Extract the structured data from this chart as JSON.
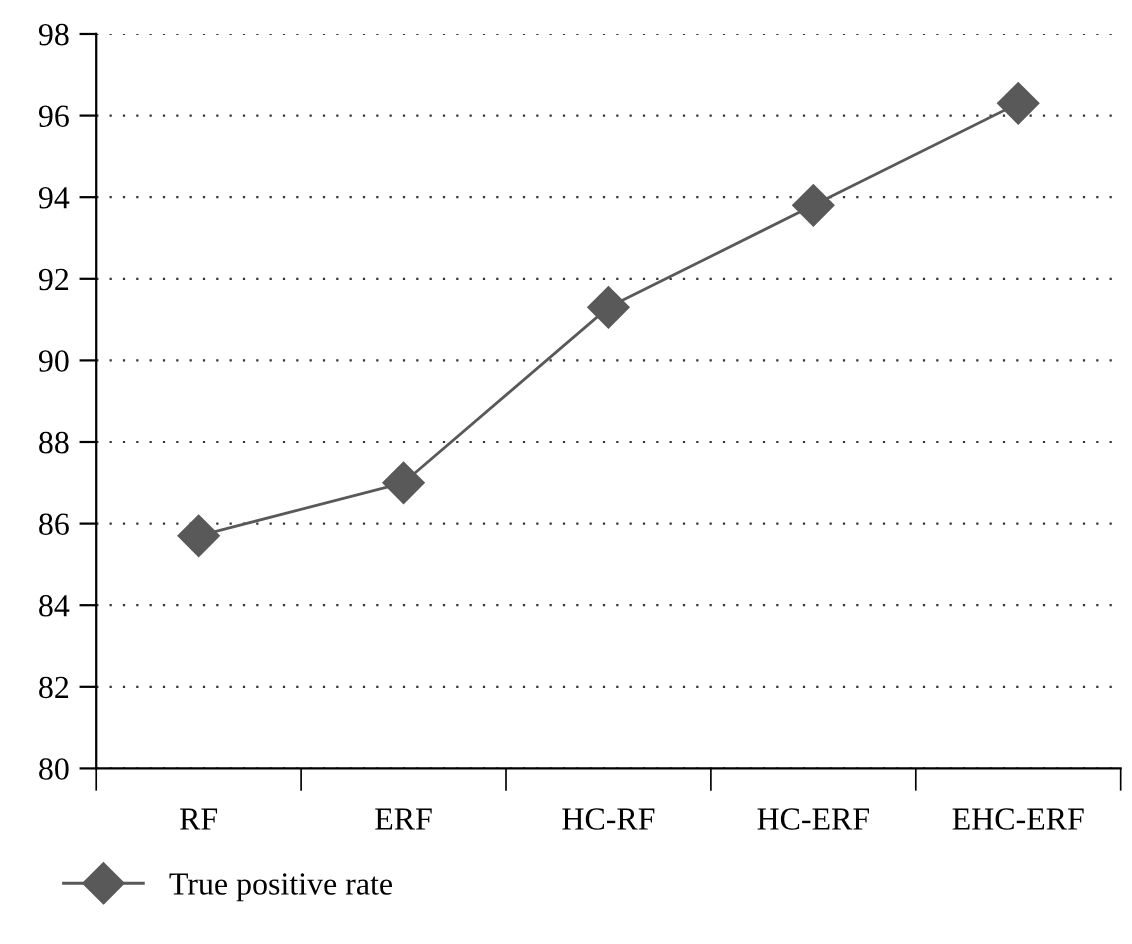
{
  "chart_data": {
    "type": "line",
    "categories": [
      "RF",
      "ERF",
      "HC-RF",
      "HC-ERF",
      "EHC-ERF"
    ],
    "series": [
      {
        "name": "True positive rate",
        "color": "#595959",
        "values": [
          85.7,
          87.0,
          91.3,
          93.8,
          96.3
        ]
      }
    ],
    "ylim": [
      80,
      98
    ],
    "yticks": [
      80,
      82,
      84,
      86,
      88,
      90,
      92,
      94,
      96,
      98
    ],
    "grid": "y",
    "legend": "bottom left",
    "marker": "diamond",
    "line_style": "solid"
  }
}
